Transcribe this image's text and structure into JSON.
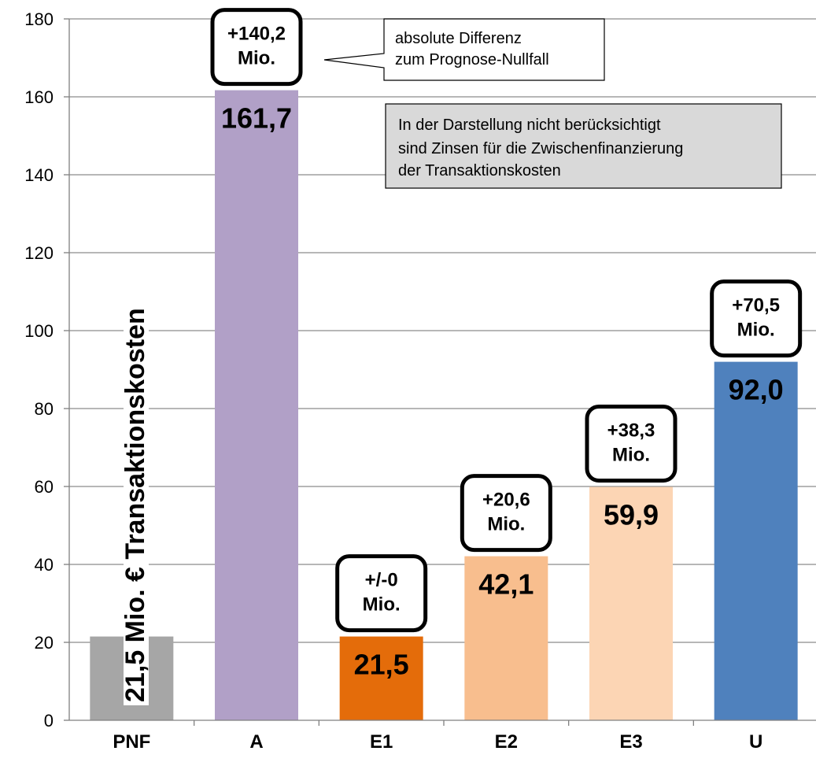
{
  "chart_data": {
    "type": "bar",
    "categories": [
      "PNF",
      "A",
      "E1",
      "E2",
      "E3",
      "U"
    ],
    "values": [
      21.5,
      161.7,
      21.5,
      42.1,
      59.9,
      92.0
    ],
    "value_labels": [
      "",
      "161,7",
      "21,5",
      "42,1",
      "59,9",
      "92,0"
    ],
    "differences": [
      "",
      "+140,2 Mio.",
      "+/-0 Mio.",
      "+20,6 Mio.",
      "+38,3 Mio.",
      "+70,5 Mio."
    ],
    "diff_lines": [
      [],
      [
        "+140,2",
        "Mio."
      ],
      [
        "+/-0",
        "Mio."
      ],
      [
        "+20,6",
        "Mio."
      ],
      [
        "+38,3",
        "Mio."
      ],
      [
        "+70,5",
        "Mio."
      ]
    ],
    "colors": [
      "#a6a6a6",
      "#b1a0c7",
      "#e46c0a",
      "#f8be8e",
      "#fcd5b4",
      "#4f81bd"
    ],
    "ylim": [
      0,
      180
    ],
    "yticks": [
      0,
      20,
      40,
      60,
      80,
      100,
      120,
      140,
      160,
      180
    ],
    "grid": true,
    "title": "",
    "xlabel": "",
    "ylabel": "",
    "pnf_label": "21,5 Mio. € Transaktionskosten",
    "callout_lines": [
      "absolute Differenz",
      "zum Prognose-Nullfall"
    ],
    "note_lines": [
      "In der Darstellung nicht berücksichtigt",
      "sind Zinsen für die Zwischenfinanzierung",
      "der Transaktionskosten"
    ]
  }
}
